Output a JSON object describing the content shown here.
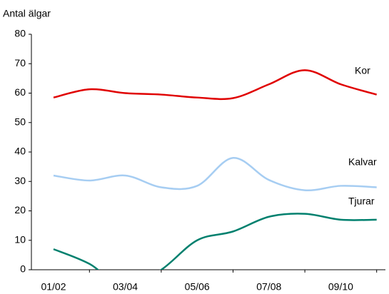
{
  "chart_data": {
    "type": "line",
    "ylabel": "Antal älgar",
    "categories": [
      "01/02",
      null,
      "03/04",
      null,
      "05/06",
      null,
      "07/08",
      null,
      "09/10",
      null
    ],
    "series": [
      {
        "name": "Kor",
        "color": "#e00000",
        "values": [
          58.5,
          61.3,
          60,
          59.5,
          58.5,
          58.3,
          63,
          67.8,
          63,
          59.5
        ]
      },
      {
        "name": "Kalvar",
        "color": "#a6cdf2",
        "values": [
          32,
          30.3,
          32,
          28,
          28.5,
          38,
          30.5,
          27,
          28.5,
          28
        ]
      },
      {
        "name": "Tjurar",
        "color": "#00806e",
        "values": [
          7,
          2,
          -6,
          0,
          10,
          13,
          18,
          19,
          17,
          17
        ]
      }
    ],
    "ylim": [
      0,
      80
    ],
    "yticks": [
      0,
      10,
      20,
      30,
      40,
      50,
      60,
      70,
      80
    ]
  }
}
